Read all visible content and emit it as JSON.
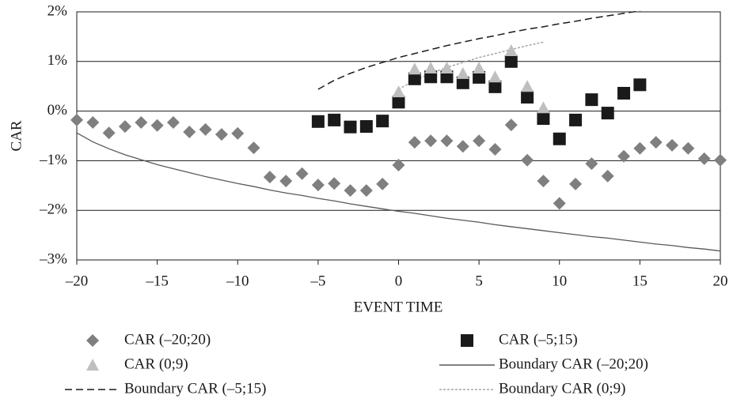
{
  "chart_data": {
    "type": "scatter",
    "x_label": "EVENT TIME",
    "y_label": "CAR",
    "xlim": [
      -20,
      20
    ],
    "xticks": [
      {
        "value": -20,
        "label": "–20"
      },
      {
        "value": -15,
        "label": "–15"
      },
      {
        "value": -10,
        "label": "–10"
      },
      {
        "value": -5,
        "label": "–5"
      },
      0,
      5,
      10,
      15,
      20
    ],
    "ylim": [
      -3,
      2
    ],
    "yticks": [
      {
        "value": -3,
        "label": "–3%"
      },
      {
        "value": -2,
        "label": "–2%"
      },
      {
        "value": -1,
        "label": "–1%"
      },
      {
        "value": 0,
        "label": "0%"
      },
      {
        "value": 1,
        "label": "1%"
      },
      {
        "value": 2,
        "label": "2%"
      }
    ],
    "grid": true,
    "legend": "bottom",
    "series": [
      {
        "name": "CAR (–20;20)",
        "color": "#7f7f7f",
        "marker": "diamond",
        "x": [
          -20,
          -19,
          -18,
          -17,
          -16,
          -15,
          -14,
          -13,
          -12,
          -11,
          -10,
          -9,
          -8,
          -7,
          -6,
          -5,
          -4,
          -3,
          -2,
          -1,
          0,
          1,
          2,
          3,
          4,
          5,
          6,
          7,
          8,
          9,
          10,
          11,
          12,
          13,
          14,
          15,
          16,
          17,
          18,
          19,
          20
        ],
        "values": [
          -0.18,
          -0.23,
          -0.44,
          -0.31,
          -0.23,
          -0.29,
          -0.23,
          -0.42,
          -0.37,
          -0.47,
          -0.45,
          -0.74,
          -1.33,
          -1.41,
          -1.26,
          -1.49,
          -1.46,
          -1.6,
          -1.6,
          -1.47,
          -1.09,
          -0.63,
          -0.6,
          -0.6,
          -0.71,
          -0.6,
          -0.77,
          -0.28,
          -0.99,
          -1.41,
          -1.86,
          -1.47,
          -1.06,
          -1.31,
          -0.91,
          -0.75,
          -0.63,
          -0.69,
          -0.75,
          -0.96,
          -0.99
        ]
      },
      {
        "name": "CAR (–5;15)",
        "color": "#1a1a1a",
        "marker": "square",
        "x": [
          -5,
          -4,
          -3,
          -2,
          -1,
          0,
          1,
          2,
          3,
          4,
          5,
          6,
          7,
          8,
          9,
          10,
          11,
          12,
          13,
          14,
          15
        ],
        "values": [
          -0.21,
          -0.18,
          -0.32,
          -0.31,
          -0.2,
          0.18,
          0.65,
          0.69,
          0.69,
          0.57,
          0.68,
          0.49,
          1.0,
          0.28,
          -0.15,
          -0.56,
          -0.18,
          0.23,
          -0.04,
          0.36,
          0.53
        ]
      },
      {
        "name": "CAR (0;9)",
        "color": "#bfbfbf",
        "marker": "triangle",
        "x": [
          0,
          1,
          2,
          3,
          4,
          5,
          6,
          7,
          8,
          9
        ],
        "values": [
          0.39,
          0.85,
          0.87,
          0.87,
          0.76,
          0.87,
          0.69,
          1.22,
          0.5,
          0.07
        ]
      },
      {
        "name": "Boundary CAR (–20;20)",
        "color": "#595959",
        "line": "solid",
        "x": [
          -20,
          -19,
          -18,
          -17,
          -16,
          -15,
          -14,
          -13,
          -12,
          -11,
          -10,
          -9,
          -8,
          -7,
          -6,
          -5,
          -4,
          -3,
          -2,
          -1,
          0,
          1,
          2,
          3,
          4,
          5,
          6,
          7,
          8,
          9,
          10,
          11,
          12,
          13,
          14,
          15,
          16,
          17,
          18,
          19,
          20
        ],
        "values": [
          -0.44,
          -0.62,
          -0.76,
          -0.88,
          -0.98,
          -1.08,
          -1.16,
          -1.24,
          -1.32,
          -1.39,
          -1.46,
          -1.52,
          -1.59,
          -1.65,
          -1.7,
          -1.76,
          -1.81,
          -1.87,
          -1.92,
          -1.97,
          -2.02,
          -2.06,
          -2.11,
          -2.16,
          -2.2,
          -2.24,
          -2.29,
          -2.33,
          -2.37,
          -2.41,
          -2.45,
          -2.49,
          -2.53,
          -2.56,
          -2.6,
          -2.64,
          -2.68,
          -2.71,
          -2.75,
          -2.78,
          -2.82
        ]
      },
      {
        "name": "Boundary CAR (–5;15)",
        "color": "#1a1a1a",
        "line": "dashed",
        "x": [
          -5,
          -4,
          -3,
          -2,
          -1,
          0,
          1,
          2,
          3,
          4,
          5,
          6,
          7,
          8,
          9,
          10,
          11,
          12,
          13,
          14,
          15
        ],
        "values": [
          0.44,
          0.62,
          0.76,
          0.88,
          0.98,
          1.08,
          1.16,
          1.24,
          1.32,
          1.39,
          1.46,
          1.52,
          1.59,
          1.65,
          1.7,
          1.76,
          1.81,
          1.87,
          1.92,
          1.97,
          2.02
        ]
      },
      {
        "name": "Boundary CAR (0;9)",
        "color": "#a6a6a6",
        "line": "dotted",
        "x": [
          0,
          1,
          2,
          3,
          4,
          5,
          6,
          7,
          8,
          9
        ],
        "values": [
          0.44,
          0.62,
          0.76,
          0.88,
          0.98,
          1.08,
          1.16,
          1.24,
          1.32,
          1.39
        ]
      }
    ]
  }
}
